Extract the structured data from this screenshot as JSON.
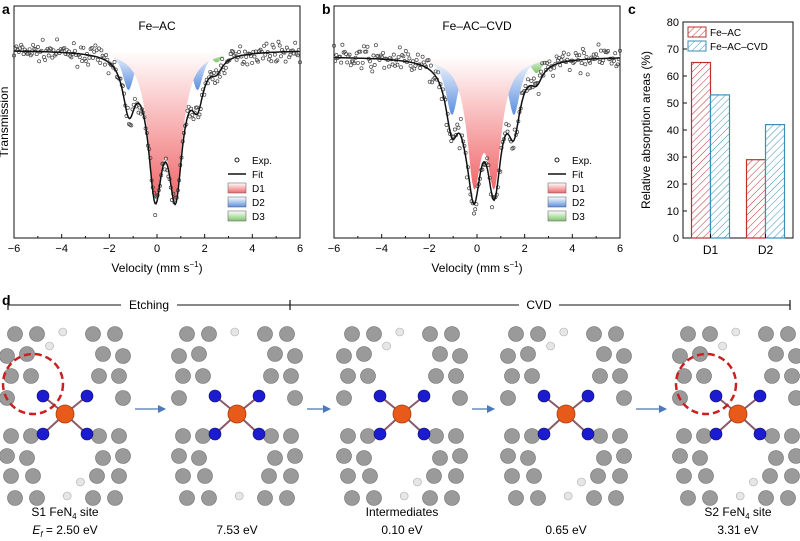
{
  "panels": {
    "a": {
      "letter": "a",
      "title": "Fe–AC"
    },
    "b": {
      "letter": "b",
      "title": "Fe–AC–CVD"
    },
    "c": {
      "letter": "c"
    },
    "d": {
      "letter": "d"
    }
  },
  "spectra_axes": {
    "ylabel": "Transmission",
    "xlabel_main": "Velocity (mm s",
    "xlabel_sup": "−1",
    "xlabel_end": ")",
    "xticks": [
      -6,
      -4,
      -2,
      0,
      2,
      4,
      6
    ],
    "xtick_labels": [
      "−6",
      "−4",
      "−2",
      "0",
      "2",
      "4",
      "6"
    ]
  },
  "legend_labels": [
    "Exp.",
    "Fit",
    "D1",
    "D2",
    "D3"
  ],
  "colors": {
    "D1": "#f0676a",
    "D2": "#5b8fe0",
    "D3": "#7ec56a",
    "fit": "#111111",
    "exp": "#444444",
    "bar_feac": "#c0302d",
    "bar_cvd": "#3a8fb7",
    "carbon": "#9a9a9a",
    "nitrogen": "#1b1bd0",
    "iron": "#e85a1a",
    "hydrogen": "#e6e6e6",
    "highlight": "#cc1f1f",
    "arrow": "#4a78b8"
  },
  "chart_data": [
    {
      "type": "line",
      "panel": "a",
      "title": "Fe–AC",
      "xlabel": "Velocity (mm s−1)",
      "ylabel": "Transmission",
      "xlim": [
        -6,
        6
      ],
      "baseline": 1.0,
      "components": [
        {
          "name": "D1",
          "kind": "doublet",
          "center": 0.35,
          "split": 0.85,
          "depth": 0.26,
          "width": 0.36
        },
        {
          "name": "D2",
          "kind": "doublet",
          "center": 0.25,
          "split": 2.9,
          "depth": 0.08,
          "width": 0.3
        },
        {
          "name": "D3",
          "kind": "doublet",
          "center": 0.7,
          "split": 3.6,
          "depth": 0.025,
          "width": 0.3
        }
      ],
      "noise": 0.018
    },
    {
      "type": "line",
      "panel": "b",
      "title": "Fe–AC–CVD",
      "xlabel": "Velocity (mm s−1)",
      "ylabel": "Transmission",
      "xlim": [
        -6,
        6
      ],
      "baseline": 1.0,
      "components": [
        {
          "name": "D1",
          "kind": "doublet",
          "center": 0.3,
          "split": 0.85,
          "depth": 0.14,
          "width": 0.36
        },
        {
          "name": "D2",
          "kind": "doublet",
          "center": 0.25,
          "split": 2.6,
          "depth": 0.07,
          "width": 0.32
        },
        {
          "name": "D3",
          "kind": "doublet",
          "center": 1.0,
          "split": 3.0,
          "depth": 0.02,
          "width": 0.3
        }
      ],
      "noise": 0.015
    },
    {
      "type": "bar",
      "panel": "c",
      "categories": [
        "D1",
        "D2"
      ],
      "ylabel": "Relative absorption areas (%)",
      "ylim": [
        0,
        80
      ],
      "yticks": [
        0,
        10,
        20,
        30,
        40,
        50,
        60,
        70,
        80
      ],
      "series": [
        {
          "name": "Fe–AC",
          "values": [
            65,
            29
          ]
        },
        {
          "name": "Fe–AC–CVD",
          "values": [
            53,
            42
          ]
        }
      ],
      "legend": "top-left"
    }
  ],
  "process": {
    "stage_labels": [
      "Etching",
      "CVD"
    ],
    "structures": [
      {
        "line1": "S1 FeN",
        "sub": "4",
        "line1_end": " site",
        "e_prefix": "E",
        "e_sub": "f",
        "e_value": " = 2.50 eV",
        "highlight": true
      },
      {
        "line1": "",
        "sub": "",
        "line1_end": "",
        "e_prefix": "",
        "e_sub": "",
        "e_value": "7.53 eV",
        "highlight": false
      },
      {
        "line1": "",
        "sub": "",
        "line1_end": "",
        "e_prefix": "",
        "e_sub": "",
        "e_value": "Intermediates",
        "e_value2": "0.10 eV",
        "highlight": false
      },
      {
        "line1": "",
        "sub": "",
        "line1_end": "",
        "e_prefix": "",
        "e_sub": "",
        "e_value": "0.65 eV",
        "highlight": false
      },
      {
        "line1": "S2 FeN",
        "sub": "4",
        "line1_end": " site",
        "e_prefix": "",
        "e_sub": "",
        "e_value": "3.31 eV",
        "highlight": true
      }
    ]
  }
}
